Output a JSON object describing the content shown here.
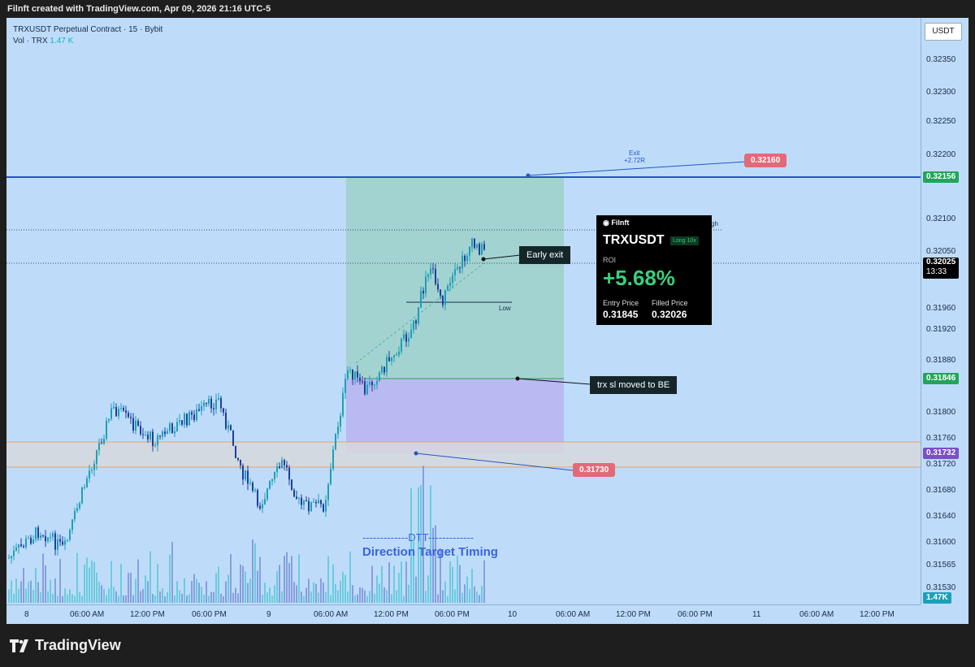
{
  "header": {
    "text": "Filnft created with TradingView.com, Apr 09, 2026 21:16 UTC-5"
  },
  "chart": {
    "title": "TRXUSDT Perpetual Contract · 15 · Bybit",
    "vol_label": "Vol · TRX",
    "vol_value": "1.47 K"
  },
  "price_axis": {
    "currency": "USDT",
    "ticks": [
      "0.32350",
      "0.32300",
      "0.32250",
      "0.32200",
      "0.32100",
      "0.32050",
      "0.31960",
      "0.31920",
      "0.31880",
      "0.31800",
      "0.31760",
      "0.31720",
      "0.31680",
      "0.31640",
      "0.31600",
      "0.31565",
      "0.31530"
    ],
    "tag_exit": "0.32156",
    "tag_current": "0.32025",
    "tag_countdown": "13:33",
    "tag_be": "0.31846",
    "tag_low": "0.31732",
    "tag_vol": "1.47K"
  },
  "time_axis": [
    "8",
    "06:00 AM",
    "12:00 PM",
    "06:00 PM",
    "9",
    "06:00 AM",
    "12:00 PM",
    "06:00 PM",
    "10",
    "06:00 AM",
    "12:00 PM",
    "06:00 PM",
    "11",
    "06:00 AM",
    "12:00 PM"
  ],
  "annotations": {
    "exit_top": "Exit",
    "exit_r": "+2.72R",
    "exit_price": "0.32160",
    "early_exit": "Early exit",
    "low": "Low",
    "high": "gh",
    "sl_moved": "trx sl moved to BE",
    "entry_low_price": "0.31730",
    "dtt_line": "-------------DTT-------------",
    "dtt_full": "Direction Target Timing"
  },
  "pnl_card": {
    "brand": "Filnft",
    "symbol": "TRXUSDT",
    "badge": "Long 10x",
    "roi_label": "ROI",
    "roi": "+5.68%",
    "entry_label": "Entry Price",
    "entry": "0.31845",
    "filled_label": "Filled Price",
    "filled": "0.32026"
  },
  "footer": {
    "logo_text": "TradingView"
  },
  "colors": {
    "up": "#1e9fb7",
    "down": "#1f3f9a",
    "exit_line": "#2456c2",
    "tag_green": "#22a559",
    "tag_purple": "#7a4fc8",
    "tag_red": "#e26a78"
  }
}
